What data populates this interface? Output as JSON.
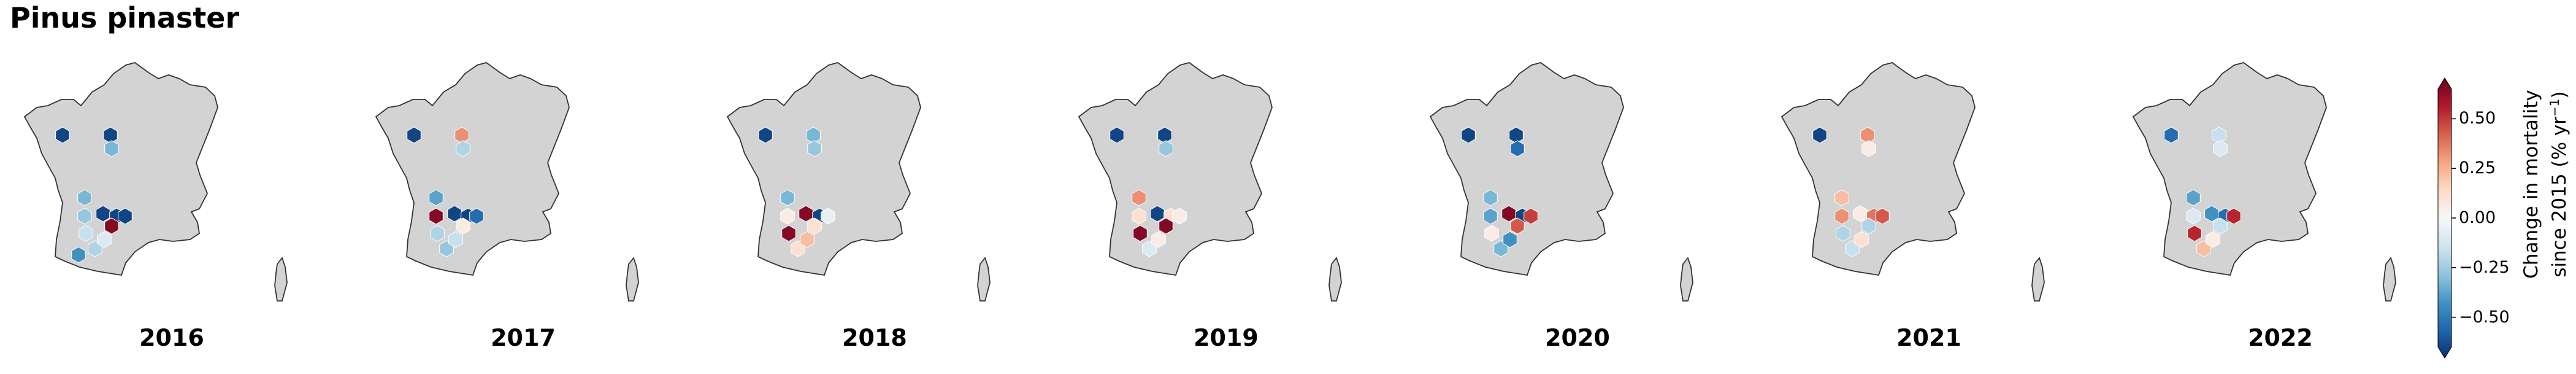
{
  "title": "Pinus pinaster",
  "colorbar": {
    "label_line1": "Change in mortality",
    "label_line2_prefix": "since 2015 (% yr",
    "label_line2_sup": "−1",
    "label_line2_suffix": ")",
    "ticks": [
      "0.50",
      "0.25",
      "0.00",
      "−0.25",
      "−0.50"
    ],
    "tick_values": [
      0.5,
      0.25,
      0,
      -0.25,
      -0.5
    ],
    "range": [
      -0.65,
      0.65
    ],
    "colormap": "RdBu_r",
    "colors": [
      "#08306b",
      "#2166ac",
      "#4393c3",
      "#92c5de",
      "#d1e5f0",
      "#f7f7f7",
      "#fddbc7",
      "#f4a582",
      "#d6604d",
      "#b2182b",
      "#67001f"
    ]
  },
  "map_colors": {
    "land": "#d3d3d3",
    "border": "#333333"
  },
  "panels": [
    {
      "year": "2016",
      "cells": [
        {
          "loc": "finistere",
          "v": -0.6
        },
        {
          "loc": "north_a",
          "v": -0.6
        },
        {
          "loc": "north_b",
          "v": -0.3
        },
        {
          "loc": "gironde_n",
          "v": -0.3
        },
        {
          "loc": "gironde_mid",
          "v": -0.25
        },
        {
          "loc": "cw_a",
          "v": -0.6
        },
        {
          "loc": "cw_b",
          "v": -0.6
        },
        {
          "loc": "cw_c",
          "v": -0.6
        },
        {
          "loc": "cw_d",
          "v": 0.6
        },
        {
          "loc": "landes_a",
          "v": -0.15
        },
        {
          "loc": "landes_b",
          "v": -0.2
        },
        {
          "loc": "landes_c",
          "v": -0.1
        },
        {
          "loc": "pyr_w",
          "v": -0.4
        }
      ]
    },
    {
      "year": "2017",
      "cells": [
        {
          "loc": "finistere",
          "v": -0.6
        },
        {
          "loc": "north_a",
          "v": 0.3
        },
        {
          "loc": "north_b",
          "v": -0.2
        },
        {
          "loc": "gironde_n",
          "v": -0.35
        },
        {
          "loc": "gironde_mid",
          "v": 0.6
        },
        {
          "loc": "cw_a",
          "v": -0.6
        },
        {
          "loc": "cw_b",
          "v": -0.6
        },
        {
          "loc": "cw_c",
          "v": -0.5
        },
        {
          "loc": "cw_d",
          "v": 0.05
        },
        {
          "loc": "landes_a",
          "v": -0.2
        },
        {
          "loc": "landes_b",
          "v": -0.25
        },
        {
          "loc": "landes_c",
          "v": -0.15
        }
      ]
    },
    {
      "year": "2018",
      "cells": [
        {
          "loc": "finistere",
          "v": -0.6
        },
        {
          "loc": "north_a",
          "v": -0.3
        },
        {
          "loc": "north_b",
          "v": -0.25
        },
        {
          "loc": "gironde_n",
          "v": -0.3
        },
        {
          "loc": "gironde_mid",
          "v": 0.05
        },
        {
          "loc": "cw_a",
          "v": 0.6
        },
        {
          "loc": "cw_b",
          "v": -0.6
        },
        {
          "loc": "cw_c",
          "v": -0.05
        },
        {
          "loc": "cw_d",
          "v": 0.1
        },
        {
          "loc": "landes_a",
          "v": 0.6
        },
        {
          "loc": "landes_b",
          "v": 0.1
        },
        {
          "loc": "landes_c",
          "v": 0.2
        }
      ]
    },
    {
      "year": "2019",
      "cells": [
        {
          "loc": "finistere",
          "v": -0.6
        },
        {
          "loc": "north_a",
          "v": -0.6
        },
        {
          "loc": "north_b",
          "v": -0.25
        },
        {
          "loc": "gironde_n",
          "v": 0.3
        },
        {
          "loc": "gironde_mid",
          "v": 0.1
        },
        {
          "loc": "cw_a",
          "v": -0.6
        },
        {
          "loc": "cw_b",
          "v": 0.1
        },
        {
          "loc": "cw_c",
          "v": 0.05
        },
        {
          "loc": "cw_d",
          "v": 0.6
        },
        {
          "loc": "landes_a",
          "v": 0.6
        },
        {
          "loc": "landes_b",
          "v": -0.1
        },
        {
          "loc": "landes_c",
          "v": 0.05
        }
      ]
    },
    {
      "year": "2020",
      "cells": [
        {
          "loc": "finistere",
          "v": -0.6
        },
        {
          "loc": "north_a",
          "v": -0.6
        },
        {
          "loc": "north_b",
          "v": -0.5
        },
        {
          "loc": "gironde_n",
          "v": -0.3
        },
        {
          "loc": "gironde_mid",
          "v": -0.35
        },
        {
          "loc": "cw_a",
          "v": 0.6
        },
        {
          "loc": "cw_b",
          "v": -0.6
        },
        {
          "loc": "cw_c",
          "v": 0.45
        },
        {
          "loc": "cw_d",
          "v": 0.4
        },
        {
          "loc": "landes_a",
          "v": 0.05
        },
        {
          "loc": "landes_b",
          "v": -0.3
        },
        {
          "loc": "landes_c",
          "v": -0.4
        }
      ]
    },
    {
      "year": "2021",
      "cells": [
        {
          "loc": "finistere",
          "v": -0.6
        },
        {
          "loc": "north_a",
          "v": 0.3
        },
        {
          "loc": "north_b",
          "v": 0.05
        },
        {
          "loc": "gironde_n",
          "v": 0.2
        },
        {
          "loc": "gironde_mid",
          "v": 0.3
        },
        {
          "loc": "cw_a",
          "v": 0.05
        },
        {
          "loc": "cw_b",
          "v": 0.35
        },
        {
          "loc": "cw_c",
          "v": 0.4
        },
        {
          "loc": "cw_d",
          "v": -0.2
        },
        {
          "loc": "landes_a",
          "v": -0.2
        },
        {
          "loc": "landes_b",
          "v": -0.15
        },
        {
          "loc": "landes_c",
          "v": 0.1
        }
      ]
    },
    {
      "year": "2022",
      "cells": [
        {
          "loc": "finistere",
          "v": -0.5
        },
        {
          "loc": "north_a",
          "v": -0.15
        },
        {
          "loc": "north_b",
          "v": -0.1
        },
        {
          "loc": "gironde_n",
          "v": -0.35
        },
        {
          "loc": "gironde_mid",
          "v": -0.1
        },
        {
          "loc": "cw_a",
          "v": -0.4
        },
        {
          "loc": "cw_b",
          "v": -0.5
        },
        {
          "loc": "cw_c",
          "v": 0.5
        },
        {
          "loc": "cw_d",
          "v": -0.15
        },
        {
          "loc": "landes_a",
          "v": 0.5
        },
        {
          "loc": "landes_b",
          "v": 0.2
        },
        {
          "loc": "landes_c",
          "v": 0.05
        }
      ]
    }
  ]
}
